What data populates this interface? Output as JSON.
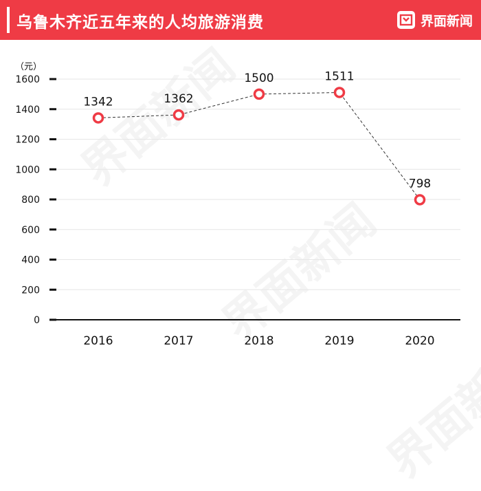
{
  "header": {
    "title": "乌鲁木齐近五年来的人均旅游消费",
    "brand": "界面新闻"
  },
  "watermark": {
    "text": "界面新闻"
  },
  "colors": {
    "header_bg": "#ef3b45",
    "marker": "#ef3b45",
    "line": "#333333"
  },
  "chart_data": {
    "type": "line",
    "title": "",
    "unit_label": "（元）",
    "xlabel": "",
    "ylabel": "",
    "categories": [
      "2016",
      "2017",
      "2018",
      "2019",
      "2020"
    ],
    "series": [
      {
        "values": [
          1342,
          1362,
          1500,
          1511,
          798
        ]
      }
    ],
    "data_labels": [
      "1342",
      "1362",
      "1500",
      "1511",
      "798"
    ],
    "ylim": [
      0,
      1600
    ],
    "yticks": [
      0,
      200,
      400,
      600,
      800,
      1000,
      1200,
      1400,
      1600
    ],
    "ytick_labels": [
      "0",
      "200",
      "400",
      "600",
      "800",
      "1000",
      "1200",
      "1400",
      "1600"
    ],
    "grid": true,
    "line_style": "dashed",
    "marker": "hollow-circle",
    "legend": "none"
  }
}
